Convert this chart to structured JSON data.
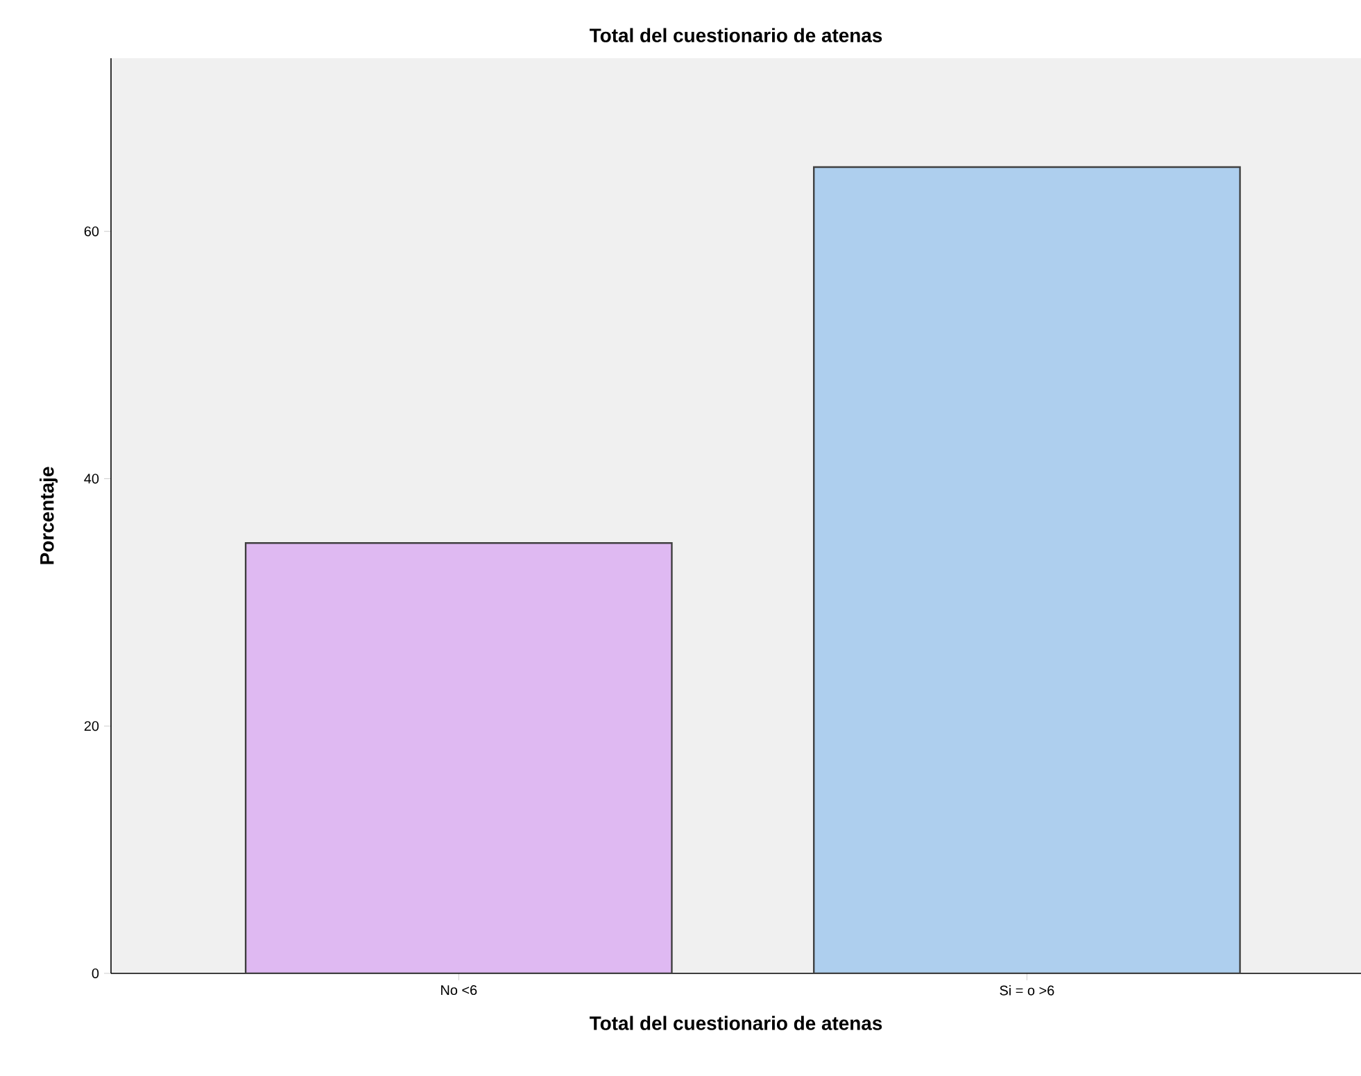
{
  "chart_data": {
    "type": "bar",
    "title": "Total del cuestionario de atenas",
    "xlabel": "Total del cuestionario de atenas",
    "ylabel": "Porcentaje",
    "categories": [
      "No <6",
      "Si = o >6"
    ],
    "values": [
      34.8,
      65.2
    ],
    "colors": [
      "#dfb9f2",
      "#aecfee"
    ],
    "ylim": [
      0,
      74
    ],
    "yticks": [
      0,
      20,
      40,
      60
    ],
    "grid": false
  }
}
